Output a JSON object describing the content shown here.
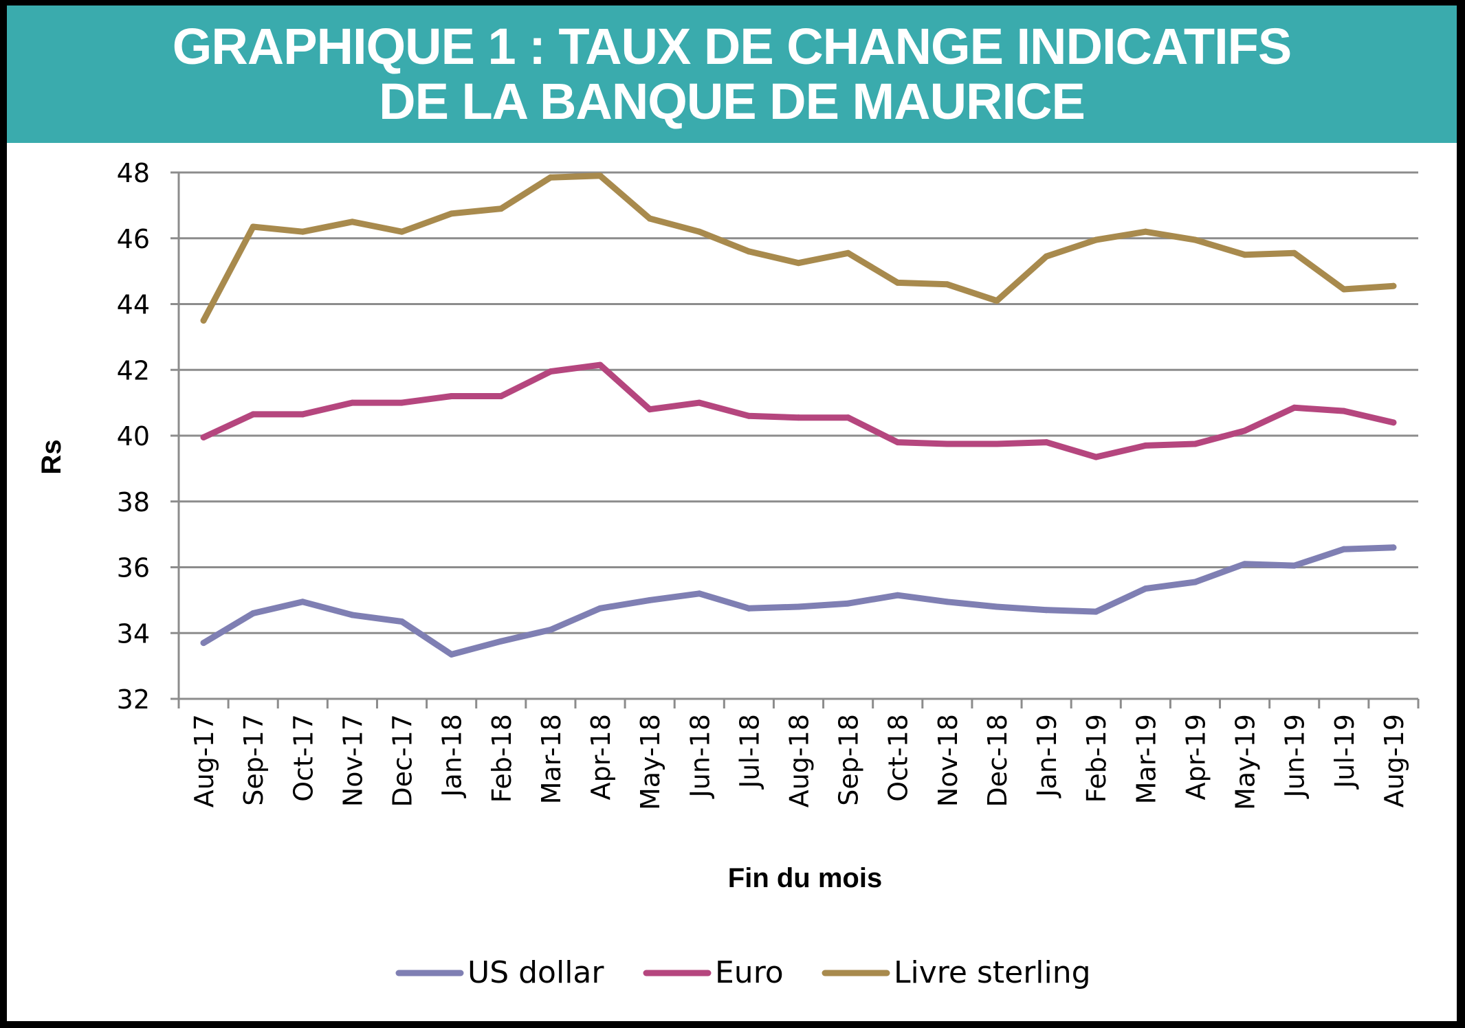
{
  "header": {
    "title_line1": "GRAPHIQUE 1 : TAUX DE CHANGE INDICATIFS",
    "title_line2": "DE LA BANQUE DE MAURICE",
    "background_color": "#3aabad"
  },
  "chart_data": {
    "type": "line",
    "xlabel": "Fin du mois",
    "ylabel": "Rs",
    "ylim": [
      32,
      48
    ],
    "yticks": [
      32,
      34,
      36,
      38,
      40,
      42,
      44,
      46,
      48
    ],
    "grid": true,
    "legend_position": "bottom",
    "categories": [
      "Aug-17",
      "Sep-17",
      "Oct-17",
      "Nov-17",
      "Dec-17",
      "Jan-18",
      "Feb-18",
      "Mar-18",
      "Apr-18",
      "May-18",
      "Jun-18",
      "Jul-18",
      "Aug-18",
      "Sep-18",
      "Oct-18",
      "Nov-18",
      "Dec-18",
      "Jan-19",
      "Feb-19",
      "Mar-19",
      "Apr-19",
      "May-19",
      "Jun-19",
      "Jul-19",
      "Aug-19"
    ],
    "series": [
      {
        "name": "US dollar",
        "color": "#7f7fb3",
        "values": [
          33.7,
          34.6,
          34.95,
          34.55,
          34.35,
          33.35,
          33.75,
          34.1,
          34.75,
          35.0,
          35.2,
          34.75,
          34.8,
          34.9,
          35.15,
          34.95,
          34.8,
          34.7,
          34.65,
          35.35,
          35.55,
          36.1,
          36.05,
          36.55,
          36.6
        ]
      },
      {
        "name": "Euro",
        "color": "#b5467e",
        "values": [
          39.95,
          40.65,
          40.65,
          41.0,
          41.0,
          41.2,
          41.2,
          41.95,
          42.15,
          40.8,
          41.0,
          40.6,
          40.55,
          40.55,
          39.8,
          39.75,
          39.75,
          39.8,
          39.35,
          39.7,
          39.75,
          40.15,
          40.85,
          40.75,
          40.4
        ]
      },
      {
        "name": "Livre sterling",
        "color": "#a88a4d",
        "values": [
          43.5,
          46.35,
          46.2,
          46.5,
          46.2,
          46.75,
          46.9,
          47.85,
          47.9,
          46.6,
          46.2,
          45.6,
          45.25,
          45.55,
          44.65,
          44.6,
          44.1,
          45.45,
          45.95,
          46.2,
          45.95,
          45.5,
          45.55,
          44.45,
          44.55
        ]
      }
    ]
  }
}
